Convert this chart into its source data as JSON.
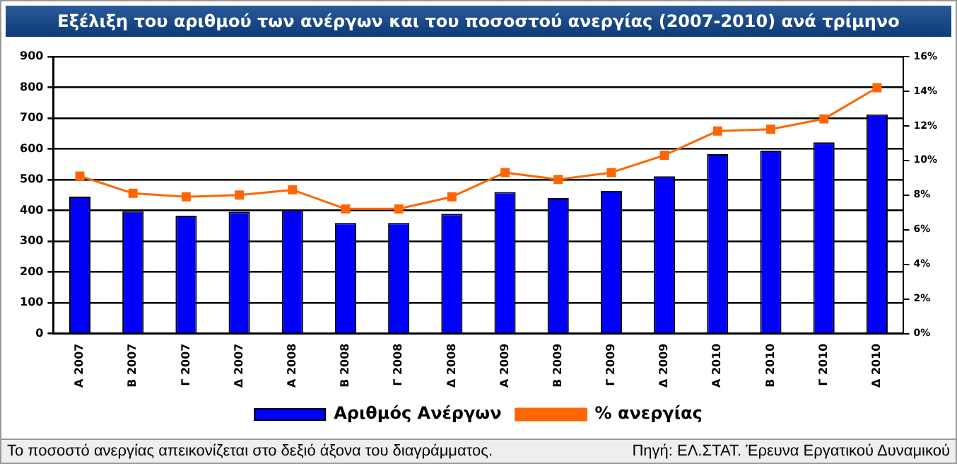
{
  "chart_data": {
    "type": "bar",
    "title": "Εξέλιξη του αριθμού των ανέργων και του ποσοστού ανεργίας (2007-2010)  ανά τρίμηνο",
    "categories": [
      "Α 2007",
      "Β 2007",
      "Γ 2007",
      "Δ 2007",
      "Α 2008",
      "Β 2008",
      "Γ 2008",
      "Δ 2008",
      "Α 2009",
      "Β 2009",
      "Γ 2009",
      "Δ 2009",
      "Α 2010",
      "Β 2010",
      "Γ 2010",
      "Δ 2010"
    ],
    "series": [
      {
        "name": "Αριθμός Ανέργων",
        "color": "#0000ff",
        "values": [
          445,
          397,
          383,
          396,
          402,
          359,
          359,
          389,
          460,
          440,
          463,
          511,
          583,
          594,
          621,
          712
        ]
      },
      {
        "name": "% ανεργίας",
        "type": "line",
        "axis": "y2",
        "color": "#ff6600",
        "values": [
          9.1,
          8.1,
          7.9,
          8.0,
          8.3,
          7.2,
          7.2,
          7.9,
          9.3,
          8.9,
          9.3,
          10.3,
          11.7,
          11.8,
          12.4,
          14.2
        ]
      }
    ],
    "ylim": [
      0,
      900
    ],
    "yticks": [
      0,
      100,
      200,
      300,
      400,
      500,
      600,
      700,
      800,
      900
    ],
    "y2lim": [
      0,
      16
    ],
    "y2ticks": [
      {
        "value": 0,
        "label": "0%"
      },
      {
        "value": 2,
        "label": "2%"
      },
      {
        "value": 4,
        "label": "4%"
      },
      {
        "value": 6,
        "label": "6%"
      },
      {
        "value": 8,
        "label": "8%"
      },
      {
        "value": 10,
        "label": "10%"
      },
      {
        "value": 12,
        "label": "12%"
      },
      {
        "value": 14,
        "label": "14%"
      },
      {
        "value": 16,
        "label": "16%"
      }
    ],
    "grid": "y",
    "legend": "bottom",
    "marker": "square",
    "line_style": "solid",
    "annotations": [
      "Το ποσοστό ανεργίας απεικονίζεται στο δεξιό άξονα του διαγράμματος.",
      "Πηγή: ΕΛ.ΣΤΑΤ. Έρευνα Εργατικού Δυναμικού"
    ]
  }
}
